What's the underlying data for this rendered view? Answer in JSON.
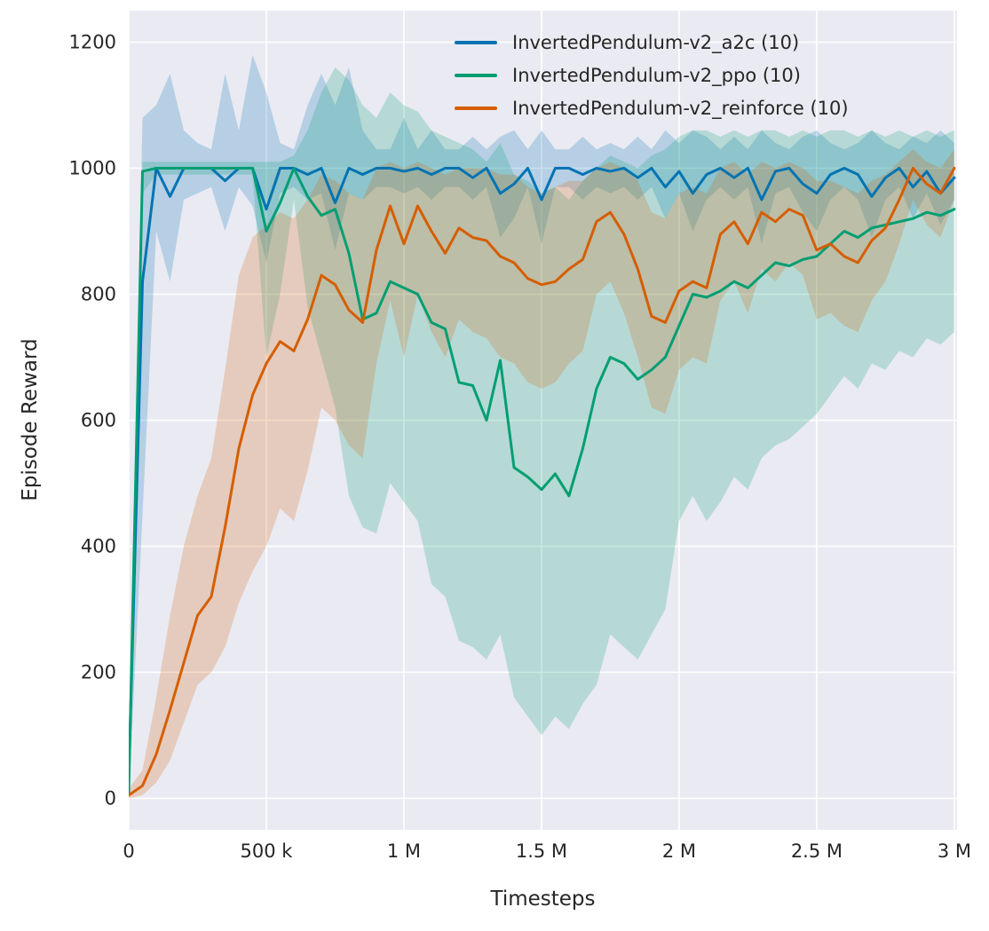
{
  "figure": {
    "background": "#ffffff",
    "plot_background": "#eaeaf2",
    "grid_color": "#ffffff",
    "text_color": "#262626"
  },
  "chart_data": {
    "type": "line",
    "title": "",
    "xlabel": "Timesteps",
    "ylabel": "Episode Reward",
    "grid": true,
    "legend_position": "upper center",
    "xlim": [
      0,
      3010000
    ],
    "ylim": [
      -50,
      1250
    ],
    "x_ticks": [
      0,
      500000,
      1000000,
      1500000,
      2000000,
      2500000,
      3000000
    ],
    "x_tick_labels": [
      "0",
      "500 k",
      "1 M",
      "1.5 M",
      "2 M",
      "2.5 M",
      "3 M"
    ],
    "y_ticks": [
      0,
      200,
      400,
      600,
      800,
      1000,
      1200
    ],
    "y_tick_labels": [
      "0",
      "200",
      "400",
      "600",
      "800",
      "1000",
      "1200"
    ],
    "x": [
      0,
      50000,
      100000,
      150000,
      200000,
      250000,
      300000,
      350000,
      400000,
      450000,
      500000,
      550000,
      600000,
      650000,
      700000,
      750000,
      800000,
      850000,
      900000,
      950000,
      1000000,
      1050000,
      1100000,
      1150000,
      1200000,
      1250000,
      1300000,
      1350000,
      1400000,
      1450000,
      1500000,
      1550000,
      1600000,
      1650000,
      1700000,
      1750000,
      1800000,
      1850000,
      1900000,
      1950000,
      2000000,
      2050000,
      2100000,
      2150000,
      2200000,
      2250000,
      2300000,
      2350000,
      2400000,
      2450000,
      2500000,
      2550000,
      2600000,
      2650000,
      2700000,
      2750000,
      2800000,
      2850000,
      2900000,
      2950000,
      3000000
    ],
    "series": [
      {
        "name": "InvertedPendulum-v2_a2c (10)",
        "short": "a2c",
        "color": "#0173b2",
        "mean": [
          30,
          820,
          1000,
          955,
          1000,
          1000,
          1000,
          980,
          1000,
          1000,
          935,
          1000,
          1000,
          990,
          1000,
          945,
          1000,
          990,
          1000,
          1000,
          995,
          1000,
          990,
          1000,
          1000,
          985,
          1000,
          960,
          975,
          1000,
          950,
          1000,
          1000,
          990,
          1000,
          995,
          1000,
          985,
          1000,
          970,
          995,
          960,
          990,
          1000,
          985,
          1000,
          950,
          995,
          1000,
          975,
          960,
          990,
          1000,
          990,
          955,
          985,
          1000,
          970,
          995,
          960,
          985
        ],
        "low": [
          0,
          450,
          900,
          820,
          950,
          960,
          970,
          900,
          970,
          940,
          850,
          960,
          970,
          950,
          960,
          870,
          960,
          950,
          970,
          970,
          960,
          970,
          950,
          970,
          970,
          950,
          970,
          890,
          920,
          970,
          880,
          970,
          970,
          950,
          970,
          960,
          970,
          950,
          970,
          920,
          960,
          900,
          950,
          970,
          950,
          970,
          880,
          960,
          970,
          930,
          900,
          950,
          970,
          950,
          890,
          950,
          970,
          920,
          960,
          910,
          950
        ],
        "high": [
          60,
          1080,
          1100,
          1150,
          1060,
          1040,
          1030,
          1150,
          1060,
          1180,
          1120,
          1040,
          1030,
          1100,
          1150,
          1100,
          1160,
          1060,
          1030,
          1030,
          1080,
          1030,
          1060,
          1030,
          1030,
          1050,
          1030,
          1050,
          1060,
          1030,
          1060,
          1030,
          1030,
          1050,
          1030,
          1040,
          1030,
          1050,
          1030,
          1060,
          1040,
          1060,
          1050,
          1030,
          1050,
          1030,
          1060,
          1040,
          1030,
          1050,
          1060,
          1040,
          1030,
          1040,
          1060,
          1040,
          1030,
          1050,
          1040,
          1060,
          1040
        ]
      },
      {
        "name": "InvertedPendulum-v2_ppo (10)",
        "short": "ppo",
        "color": "#029e73",
        "mean": [
          10,
          995,
          1000,
          1000,
          1000,
          1000,
          1000,
          1000,
          1000,
          1000,
          900,
          945,
          1000,
          955,
          925,
          935,
          865,
          760,
          770,
          820,
          810,
          800,
          755,
          745,
          660,
          655,
          600,
          695,
          525,
          510,
          490,
          515,
          480,
          555,
          650,
          700,
          690,
          665,
          680,
          700,
          750,
          800,
          795,
          805,
          820,
          810,
          830,
          850,
          845,
          855,
          860,
          880,
          900,
          890,
          905,
          910,
          915,
          920,
          930,
          925,
          935
        ],
        "low": [
          0,
          960,
          990,
          990,
          990,
          990,
          990,
          990,
          990,
          990,
          700,
          800,
          950,
          780,
          700,
          620,
          480,
          430,
          420,
          500,
          470,
          440,
          340,
          320,
          250,
          240,
          220,
          260,
          160,
          130,
          100,
          130,
          110,
          150,
          180,
          260,
          240,
          220,
          260,
          300,
          440,
          480,
          440,
          470,
          510,
          490,
          540,
          560,
          570,
          590,
          610,
          640,
          670,
          650,
          690,
          680,
          710,
          700,
          730,
          720,
          740
        ],
        "high": [
          30,
          1010,
          1010,
          1010,
          1010,
          1010,
          1010,
          1010,
          1010,
          1010,
          1010,
          1010,
          1020,
          1060,
          1120,
          1160,
          1140,
          1100,
          1080,
          1120,
          1100,
          1090,
          1060,
          1050,
          1040,
          1030,
          1010,
          1040,
          990,
          980,
          960,
          970,
          950,
          980,
          1000,
          1020,
          1010,
          1000,
          1020,
          1030,
          1050,
          1060,
          1060,
          1050,
          1060,
          1050,
          1060,
          1060,
          1050,
          1060,
          1050,
          1060,
          1060,
          1050,
          1060,
          1050,
          1060,
          1050,
          1060,
          1050,
          1060
        ]
      },
      {
        "name": "InvertedPendulum-v2_reinforce (10)",
        "short": "reinforce",
        "color": "#d55e00",
        "mean": [
          5,
          20,
          70,
          140,
          215,
          290,
          320,
          430,
          555,
          640,
          690,
          725,
          710,
          760,
          830,
          815,
          775,
          755,
          870,
          940,
          880,
          940,
          900,
          865,
          905,
          890,
          885,
          860,
          850,
          825,
          815,
          820,
          840,
          855,
          915,
          930,
          895,
          840,
          765,
          755,
          805,
          820,
          810,
          895,
          915,
          880,
          930,
          915,
          935,
          925,
          870,
          880,
          860,
          850,
          885,
          905,
          950,
          1000,
          975,
          960,
          1000
        ],
        "low": [
          0,
          5,
          25,
          60,
          120,
          180,
          200,
          240,
          310,
          360,
          400,
          460,
          440,
          520,
          620,
          600,
          560,
          540,
          690,
          790,
          700,
          800,
          740,
          700,
          760,
          740,
          730,
          700,
          690,
          660,
          650,
          660,
          690,
          710,
          800,
          820,
          770,
          700,
          620,
          610,
          680,
          700,
          690,
          790,
          820,
          770,
          840,
          820,
          850,
          830,
          760,
          770,
          750,
          740,
          790,
          820,
          880,
          950,
          910,
          890,
          950
        ],
        "high": [
          15,
          45,
          160,
          290,
          400,
          480,
          540,
          680,
          830,
          890,
          910,
          930,
          920,
          950,
          990,
          980,
          960,
          950,
          1000,
          1010,
          1000,
          1010,
          1000,
          990,
          1000,
          1000,
          1000,
          990,
          990,
          970,
          960,
          970,
          980,
          980,
          1000,
          1010,
          1000,
          980,
          930,
          920,
          960,
          970,
          960,
          1000,
          1010,
          990,
          1010,
          1000,
          1010,
          1000,
          980,
          980,
          970,
          960,
          980,
          990,
          1010,
          1030,
          1010,
          1000,
          1030
        ]
      }
    ]
  }
}
